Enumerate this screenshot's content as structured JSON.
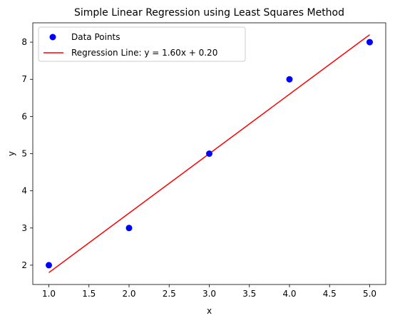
{
  "chart_data": {
    "type": "scatter",
    "title": "Simple Linear Regression using Least Squares Method",
    "xlabel": "x",
    "ylabel": "y",
    "xlim": [
      0.8,
      5.2
    ],
    "ylim": [
      1.48,
      8.52
    ],
    "xticks": [
      1.0,
      1.5,
      2.0,
      2.5,
      3.0,
      3.5,
      4.0,
      4.5,
      5.0
    ],
    "yticks": [
      2,
      3,
      4,
      5,
      6,
      7,
      8
    ],
    "grid": false,
    "legend_position": "upper-left",
    "series": [
      {
        "name": "Data Points",
        "kind": "scatter",
        "color": "#0000ff",
        "x": [
          1,
          2,
          3,
          4,
          5
        ],
        "y": [
          2,
          3,
          5,
          7,
          8
        ]
      },
      {
        "name": "Regression Line: y = 1.60x + 0.20",
        "kind": "line",
        "color": "#ff0000",
        "x": [
          1,
          5
        ],
        "y": [
          1.8,
          8.2
        ]
      }
    ]
  }
}
